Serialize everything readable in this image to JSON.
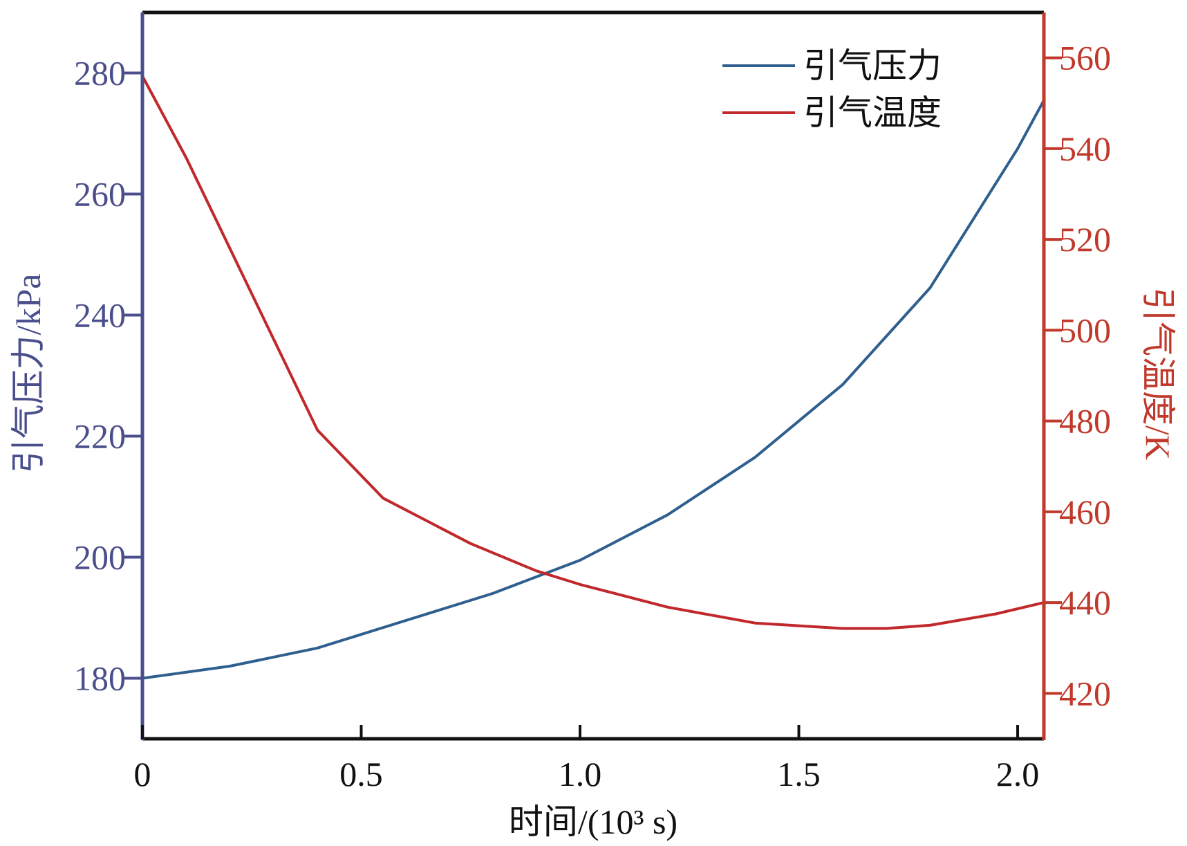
{
  "chart_data": {
    "type": "line",
    "xlabel": "时间/(10³ s)",
    "ylabel_left": "引气压力/kPa",
    "ylabel_right": "引气温度/K",
    "xlim": [
      0,
      2.06
    ],
    "ylim_left": [
      170,
      290
    ],
    "ylim_right": [
      410,
      570
    ],
    "x_ticks": [
      0,
      0.5,
      1.0,
      1.5,
      2.0
    ],
    "x_tick_labels": [
      "0",
      "0.5",
      "1.0",
      "1.5",
      "2.0"
    ],
    "y_left_ticks": [
      180,
      200,
      220,
      240,
      260,
      280
    ],
    "y_left_tick_labels": [
      "180",
      "200",
      "220",
      "240",
      "260",
      "280"
    ],
    "y_right_ticks": [
      420,
      440,
      460,
      480,
      500,
      520,
      540,
      560
    ],
    "y_right_tick_labels": [
      "420",
      "440",
      "460",
      "480",
      "500",
      "520",
      "540",
      "560"
    ],
    "grid": false,
    "legend_position": "top-right",
    "colors": {
      "left_axis": "#4a4f8c",
      "right_axis": "#c0392b",
      "frame": "#111111",
      "pressure": "#2f5f8f",
      "temperature": "#c0282b"
    },
    "series": [
      {
        "name": "引气压力",
        "axis": "left",
        "color": "#2f5f8f",
        "x": [
          0,
          0.2,
          0.4,
          0.6,
          0.8,
          1.0,
          1.2,
          1.4,
          1.6,
          1.8,
          2.0,
          2.06
        ],
        "y": [
          180,
          182,
          185,
          189.5,
          194,
          199.5,
          207,
          216.5,
          228.5,
          244.5,
          267.5,
          275.5
        ]
      },
      {
        "name": "引气温度",
        "axis": "right",
        "color": "#c0282b",
        "x": [
          0,
          0.1,
          0.2,
          0.3,
          0.4,
          0.5,
          0.55,
          0.65,
          0.75,
          0.9,
          1.0,
          1.2,
          1.4,
          1.6,
          1.7,
          1.8,
          1.95,
          2.06
        ],
        "y": [
          556,
          538,
          518,
          498,
          478,
          468,
          463,
          458,
          453,
          447,
          444,
          439,
          435.5,
          434.3,
          434.3,
          435,
          437.5,
          440
        ]
      }
    ]
  }
}
